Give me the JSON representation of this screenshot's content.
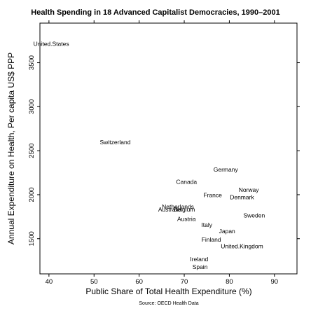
{
  "chart_data": {
    "type": "scatter",
    "title": "Health Spending in 18 Advanced Capitalist Democracies, 1990–2001",
    "xlabel": "Public Share of Total Health Expenditure (%)",
    "ylabel": "Annual Expenditure on Health, Per capita US$ PPP",
    "source": "Source: OECD Health Data",
    "xlim": [
      38,
      95
    ],
    "ylim": [
      1100,
      3950
    ],
    "xticks": [
      40,
      50,
      60,
      70,
      80,
      90
    ],
    "yticks": [
      1500,
      2000,
      2500,
      3000,
      3500
    ],
    "points": [
      {
        "label": "United.States",
        "x": 40.5,
        "y": 3710
      },
      {
        "label": "Switzerland",
        "x": 54.7,
        "y": 2590
      },
      {
        "label": "Germany",
        "x": 79.2,
        "y": 2280
      },
      {
        "label": "Canada",
        "x": 70.5,
        "y": 2140
      },
      {
        "label": "Norway",
        "x": 84.3,
        "y": 2050
      },
      {
        "label": "France",
        "x": 76.3,
        "y": 1990
      },
      {
        "label": "Denmark",
        "x": 82.8,
        "y": 1965
      },
      {
        "label": "Netherlands",
        "x": 68.6,
        "y": 1860
      },
      {
        "label": "Australia",
        "x": 66.8,
        "y": 1825
      },
      {
        "label": "Belgium",
        "x": 70.0,
        "y": 1825
      },
      {
        "label": "Sweden",
        "x": 85.5,
        "y": 1760
      },
      {
        "label": "Austria",
        "x": 70.5,
        "y": 1720
      },
      {
        "label": "Italy",
        "x": 75.0,
        "y": 1650
      },
      {
        "label": "Japan",
        "x": 79.5,
        "y": 1580
      },
      {
        "label": "Finland",
        "x": 76.0,
        "y": 1485
      },
      {
        "label": "United.Kingdom",
        "x": 82.8,
        "y": 1410
      },
      {
        "label": "Ireland",
        "x": 73.3,
        "y": 1260
      },
      {
        "label": "Spain",
        "x": 73.5,
        "y": 1175
      }
    ]
  }
}
